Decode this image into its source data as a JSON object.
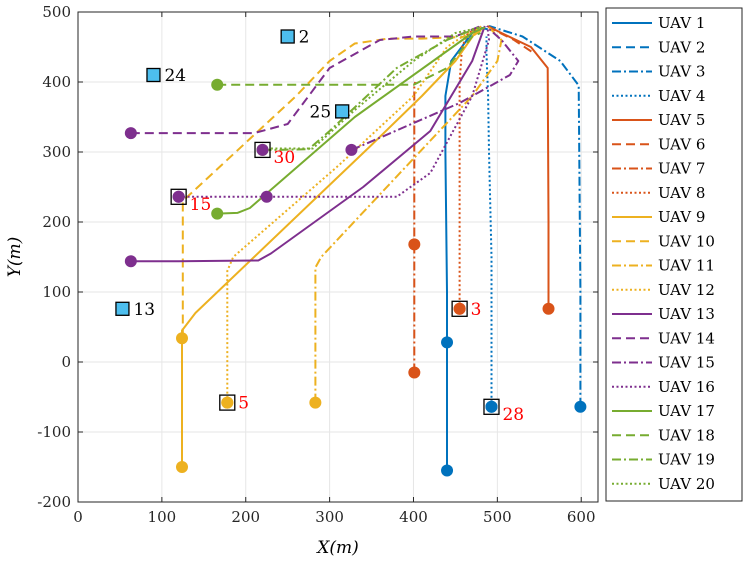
{
  "chart_data": {
    "type": "line",
    "xlabel": "X(m)",
    "ylabel": "Y(m)",
    "xlim": [
      0,
      620
    ],
    "ylim": [
      -200,
      500
    ],
    "xticks": [
      "0",
      "100",
      "200",
      "300",
      "400",
      "500",
      "600"
    ],
    "yticks": [
      "-200",
      "-100",
      "0",
      "100",
      "200",
      "300",
      "400",
      "500"
    ],
    "grid": true,
    "legend_position": "outside-right",
    "series": [
      {
        "name": "UAV 1",
        "color": "#0072BD",
        "dash": "solid",
        "points": [
          [
            440,
            -155
          ],
          [
            440,
            28
          ],
          [
            440,
            100
          ],
          [
            438,
            300
          ],
          [
            438,
            380
          ],
          [
            445,
            430
          ],
          [
            470,
            470
          ],
          [
            478,
            478
          ]
        ],
        "markers": [
          [
            440,
            -155
          ],
          [
            440,
            28
          ]
        ]
      },
      {
        "name": "UAV 2",
        "color": "#0072BD",
        "dash": "dashed",
        "points": [
          [
            478,
            478
          ],
          [
            490,
            475
          ]
        ],
        "markers": []
      },
      {
        "name": "UAV 3",
        "color": "#0072BD",
        "dash": "dashdot",
        "points": [
          [
            599,
            -64
          ],
          [
            599,
            100
          ],
          [
            597,
            395
          ],
          [
            575,
            430
          ],
          [
            530,
            465
          ],
          [
            490,
            480
          ]
        ],
        "markers": [
          [
            599,
            -64
          ]
        ]
      },
      {
        "name": "UAV 4",
        "color": "#0072BD",
        "dash": "dotted",
        "points": [
          [
            493,
            -64
          ],
          [
            493,
            150
          ],
          [
            490,
            300
          ],
          [
            489,
            380
          ],
          [
            487,
            440
          ],
          [
            487,
            465
          ]
        ],
        "markers": [
          [
            493,
            -64
          ]
        ]
      },
      {
        "name": "UAV 5",
        "color": "#D95319",
        "dash": "solid",
        "points": [
          [
            561,
            76
          ],
          [
            561,
            200
          ],
          [
            560,
            420
          ],
          [
            540,
            450
          ],
          [
            505,
            470
          ],
          [
            488,
            480
          ]
        ],
        "markers": [
          [
            561,
            76
          ]
        ]
      },
      {
        "name": "UAV 6",
        "color": "#D95319",
        "dash": "dashed",
        "points": [
          [
            488,
            480
          ],
          [
            500,
            472
          ],
          [
            520,
            460
          ],
          [
            545,
            440
          ]
        ],
        "markers": []
      },
      {
        "name": "UAV 7",
        "color": "#D95319",
        "dash": "dashdot",
        "points": [
          [
            401,
            -15
          ],
          [
            401,
            168
          ],
          [
            401,
            300
          ],
          [
            401,
            395
          ],
          [
            402,
            400
          ]
        ],
        "markers": [
          [
            401,
            -15
          ],
          [
            401,
            168
          ]
        ]
      },
      {
        "name": "UAV 8",
        "color": "#D95319",
        "dash": "dotted",
        "points": [
          [
            455,
            76
          ],
          [
            455,
            200
          ],
          [
            455,
            400
          ],
          [
            458,
            450
          ],
          [
            465,
            470
          ],
          [
            478,
            478
          ]
        ],
        "markers": [
          [
            455,
            76
          ]
        ]
      },
      {
        "name": "UAV 9",
        "color": "#EDB120",
        "dash": "solid",
        "points": [
          [
            124,
            -150
          ],
          [
            124,
            34
          ],
          [
            124,
            45
          ],
          [
            140,
            70
          ],
          [
            350,
            310
          ],
          [
            410,
            380
          ],
          [
            450,
            430
          ],
          [
            478,
            478
          ]
        ],
        "markers": [
          [
            124,
            -150
          ],
          [
            124,
            34
          ]
        ]
      },
      {
        "name": "UAV 10",
        "color": "#EDB120",
        "dash": "dashed",
        "points": [
          [
            125,
            35
          ],
          [
            125,
            230
          ],
          [
            170,
            280
          ],
          [
            260,
            380
          ],
          [
            300,
            430
          ],
          [
            330,
            455
          ],
          [
            370,
            462
          ],
          [
            410,
            462
          ],
          [
            470,
            465
          ],
          [
            485,
            478
          ]
        ],
        "markers": []
      },
      {
        "name": "UAV 11",
        "color": "#EDB120",
        "dash": "dashdot",
        "points": [
          [
            283,
            -58
          ],
          [
            283,
            135
          ],
          [
            290,
            150
          ],
          [
            470,
            380
          ],
          [
            500,
            430
          ],
          [
            505,
            460
          ],
          [
            490,
            478
          ]
        ],
        "markers": [
          [
            283,
            -58
          ]
        ]
      },
      {
        "name": "UAV 12",
        "color": "#EDB120",
        "dash": "dotted",
        "points": [
          [
            178,
            -58
          ],
          [
            178,
            130
          ],
          [
            185,
            150
          ],
          [
            310,
            280
          ],
          [
            400,
            380
          ],
          [
            440,
            450
          ],
          [
            465,
            470
          ],
          [
            482,
            480
          ]
        ],
        "markers": [
          [
            178,
            -58
          ]
        ]
      },
      {
        "name": "UAV 13",
        "color": "#7E2F8E",
        "dash": "solid",
        "points": [
          [
            63,
            144
          ],
          [
            120,
            144
          ],
          [
            215,
            145
          ],
          [
            230,
            155
          ],
          [
            340,
            250
          ],
          [
            420,
            330
          ],
          [
            470,
            430
          ],
          [
            485,
            480
          ]
        ],
        "markers": [
          [
            63,
            144
          ]
        ]
      },
      {
        "name": "UAV 14",
        "color": "#7E2F8E",
        "dash": "dashed",
        "points": [
          [
            63,
            327
          ],
          [
            150,
            327
          ],
          [
            210,
            327
          ],
          [
            250,
            340
          ],
          [
            300,
            420
          ],
          [
            360,
            460
          ],
          [
            400,
            465
          ],
          [
            450,
            465
          ],
          [
            480,
            480
          ]
        ],
        "markers": [
          [
            63,
            327
          ]
        ]
      },
      {
        "name": "UAV 15",
        "color": "#7E2F8E",
        "dash": "dashdot",
        "points": [
          [
            326,
            303
          ],
          [
            340,
            310
          ],
          [
            455,
            370
          ],
          [
            515,
            410
          ],
          [
            525,
            430
          ],
          [
            505,
            460
          ],
          [
            488,
            478
          ]
        ],
        "markers": [
          [
            326,
            303
          ]
        ]
      },
      {
        "name": "UAV 16",
        "color": "#7E2F8E",
        "dash": "dotted",
        "points": [
          [
            120,
            236
          ],
          [
            225,
            236
          ],
          [
            380,
            236
          ],
          [
            420,
            270
          ],
          [
            470,
            380
          ],
          [
            490,
            460
          ],
          [
            488,
            480
          ]
        ],
        "markers": [
          [
            120,
            236
          ],
          [
            225,
            236
          ]
        ]
      },
      {
        "name": "UAV 17",
        "color": "#77AC30",
        "dash": "solid",
        "points": [
          [
            166,
            212
          ],
          [
            190,
            213
          ],
          [
            205,
            220
          ],
          [
            330,
            350
          ],
          [
            470,
            470
          ],
          [
            485,
            478
          ]
        ],
        "markers": [
          [
            166,
            212
          ]
        ]
      },
      {
        "name": "UAV 18",
        "color": "#77AC30",
        "dash": "dashed",
        "points": [
          [
            166,
            396
          ],
          [
            300,
            396
          ],
          [
            400,
            396
          ],
          [
            440,
            420
          ],
          [
            470,
            465
          ],
          [
            480,
            470
          ]
        ],
        "markers": [
          [
            166,
            396
          ]
        ]
      },
      {
        "name": "UAV 19",
        "color": "#77AC30",
        "dash": "dashdot",
        "points": [
          [
            220,
            303
          ],
          [
            240,
            303
          ],
          [
            275,
            304
          ],
          [
            300,
            330
          ],
          [
            380,
            420
          ],
          [
            440,
            460
          ],
          [
            478,
            478
          ]
        ],
        "markers": [
          [
            220,
            303
          ]
        ]
      },
      {
        "name": "UAV 20",
        "color": "#77AC30",
        "dash": "dotted",
        "points": [
          [
            230,
            305
          ],
          [
            280,
            305
          ],
          [
            330,
            360
          ],
          [
            400,
            430
          ],
          [
            450,
            470
          ],
          [
            480,
            478
          ]
        ],
        "markers": []
      }
    ],
    "targets": [
      {
        "label": "2",
        "x": 250,
        "y": 465,
        "color": "#4DBEEE",
        "label_color": "#000000",
        "label_side": "right",
        "marker_type": "square"
      },
      {
        "label": "24",
        "x": 90,
        "y": 410,
        "color": "#4DBEEE",
        "label_color": "#000000",
        "label_side": "right",
        "marker_type": "square"
      },
      {
        "label": "25",
        "x": 315,
        "y": 358,
        "color": "#4DBEEE",
        "label_color": "#000000",
        "label_side": "left",
        "marker_type": "square"
      },
      {
        "label": "13",
        "x": 53,
        "y": 76,
        "color": "#4DBEEE",
        "label_color": "#000000",
        "label_side": "right",
        "marker_type": "square"
      },
      {
        "label": "30",
        "x": 220,
        "y": 303,
        "color": "#7E2F8E",
        "label_color": "#FF0000",
        "label_side": "right-below",
        "marker_type": "square-dot"
      },
      {
        "label": "15",
        "x": 120,
        "y": 236,
        "color": "#7E2F8E",
        "label_color": "#FF0000",
        "label_side": "right-below",
        "marker_type": "square-dot"
      },
      {
        "label": "3",
        "x": 455,
        "y": 76,
        "color": "#D95319",
        "label_color": "#FF0000",
        "label_side": "right",
        "marker_type": "square-dot"
      },
      {
        "label": "5",
        "x": 178,
        "y": -58,
        "color": "#EDB120",
        "label_color": "#FF0000",
        "label_side": "right",
        "marker_type": "square-dot"
      },
      {
        "label": "28",
        "x": 493,
        "y": -64,
        "color": "#0072BD",
        "label_color": "#FF0000",
        "label_side": "right-below",
        "marker_type": "square-dot"
      }
    ]
  }
}
